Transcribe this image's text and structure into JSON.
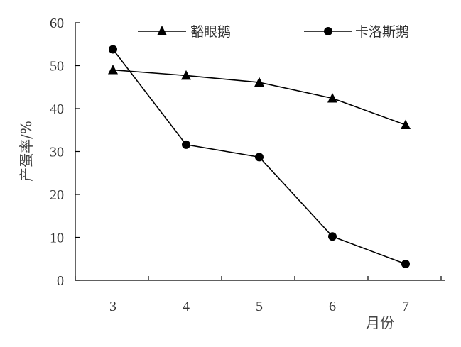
{
  "chart_data": {
    "type": "line",
    "title": "",
    "xlabel": "月份",
    "ylabel": "产蛋率/%",
    "x": [
      3,
      4,
      5,
      6,
      7
    ],
    "x_tick_labels": [
      "3",
      "4",
      "5",
      "6",
      "7"
    ],
    "ylim": [
      0,
      60
    ],
    "y_ticks": [
      0,
      10,
      20,
      30,
      40,
      50,
      60
    ],
    "y_tick_labels": [
      "0",
      "10",
      "20",
      "30",
      "40",
      "50",
      "60"
    ],
    "grid": false,
    "legend_position": "top",
    "series": [
      {
        "name": "豁眼鹅",
        "marker": "triangle",
        "color": "#000000",
        "values": [
          49,
          47.7,
          46.1,
          42.4,
          36.2
        ]
      },
      {
        "name": "卡洛斯鹅",
        "marker": "circle",
        "color": "#000000",
        "values": [
          53.8,
          31.6,
          28.7,
          10.2,
          3.8
        ]
      }
    ]
  }
}
